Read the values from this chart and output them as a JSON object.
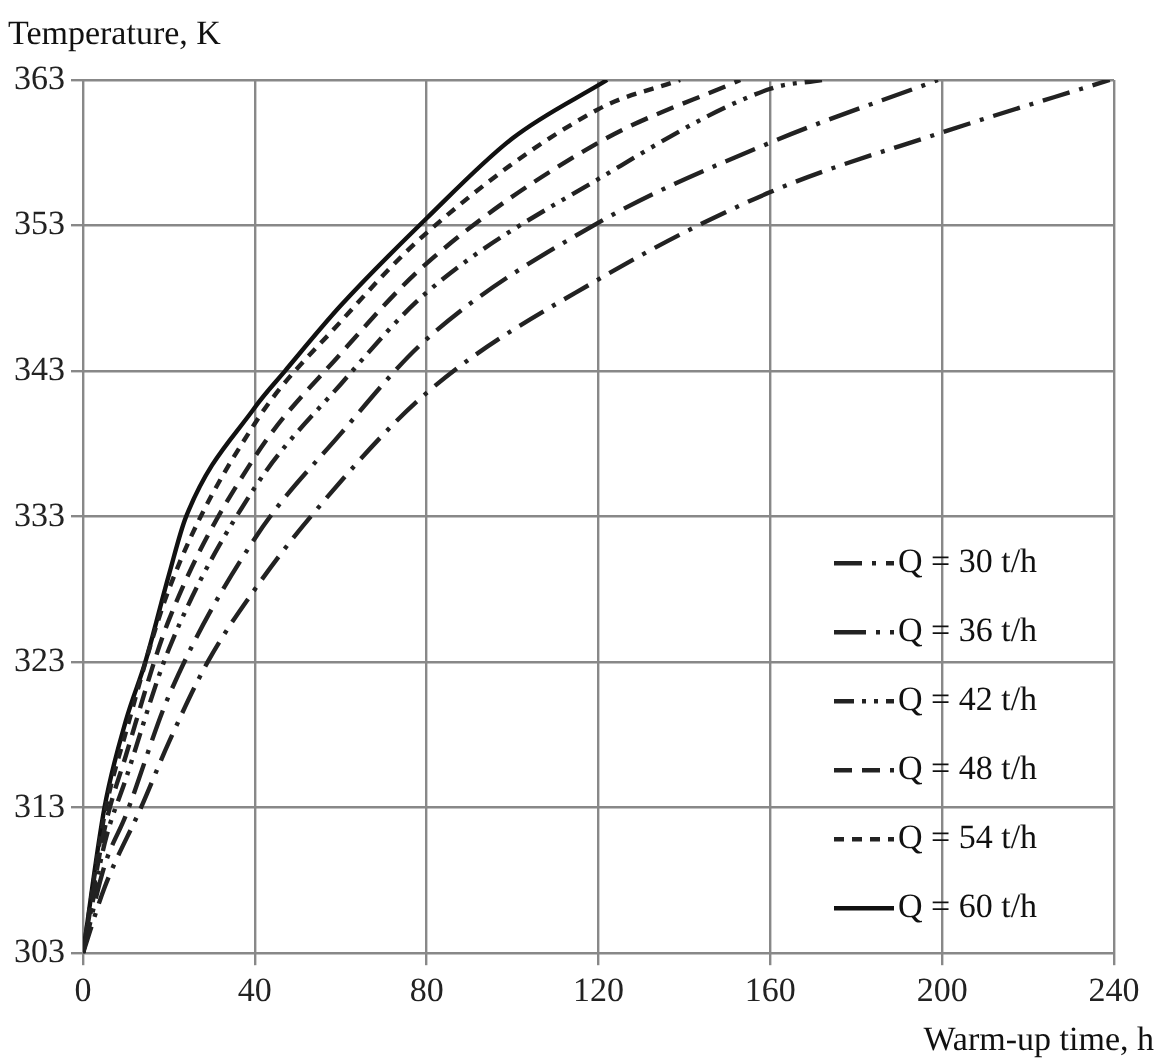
{
  "chart_data": {
    "type": "line",
    "xlabel": "Warm-up time, h",
    "ylabel": "Temperature, K",
    "xlim": [
      0,
      240
    ],
    "xticks": [
      0,
      40,
      80,
      120,
      160,
      200,
      240
    ],
    "ylim": [
      303,
      363
    ],
    "yticks": [
      303,
      313,
      323,
      333,
      343,
      353,
      363
    ],
    "grid": true,
    "legend": "bottom right",
    "marker": "none",
    "series": [
      {
        "name": "Q = 30 t/h",
        "color": "#222222",
        "line_style": "dashed",
        "x": [
          0,
          5,
          13.5,
          20,
          29,
          40,
          53,
          80,
          120,
          160,
          200,
          239
        ],
        "values": [
          303,
          307.5,
          313,
          317.5,
          323,
          328,
          333,
          341.5,
          349.3,
          355.3,
          359.4,
          363
        ]
      },
      {
        "name": "Q = 36 t/h",
        "color": "#222222",
        "line_style": "dashed",
        "x": [
          0,
          5,
          10,
          20,
          40,
          60,
          80,
          120,
          160,
          199
        ],
        "values": [
          303,
          309,
          312.5,
          320.7,
          331.5,
          338.7,
          345.2,
          353.2,
          358.7,
          363
        ]
      },
      {
        "name": "Q = 42 t/h",
        "color": "#222222",
        "line_style": "dashed",
        "x": [
          0,
          5,
          10,
          20,
          40,
          60,
          80,
          120,
          160,
          172
        ],
        "values": [
          303,
          310.5,
          315,
          323.9,
          335,
          342.1,
          348.4,
          356.2,
          362.4,
          363
        ]
      },
      {
        "name": "Q = 48 t/h",
        "color": "#222222",
        "line_style": "dashed",
        "x": [
          0,
          5,
          10,
          20,
          40,
          60,
          80,
          120,
          153
        ],
        "values": [
          303,
          311.5,
          316.6,
          325.9,
          337.1,
          344.2,
          350.4,
          358.7,
          363
        ]
      },
      {
        "name": "Q = 54 t/h",
        "color": "#222222",
        "line_style": "dashed",
        "x": [
          0,
          5,
          10,
          20,
          40,
          60,
          80,
          120,
          139
        ],
        "values": [
          303,
          312.5,
          318.2,
          328,
          339.4,
          346.4,
          352.5,
          361,
          363
        ]
      },
      {
        "name": "Q = 60 t/h",
        "color": "#111111",
        "line_style": "solid",
        "x": [
          0,
          5,
          10,
          14.5,
          20,
          24,
          40,
          47,
          60,
          80,
          100,
          122
        ],
        "values": [
          303,
          313,
          319,
          323,
          329,
          333,
          340.5,
          343,
          347.5,
          353.5,
          359,
          363
        ]
      }
    ]
  }
}
